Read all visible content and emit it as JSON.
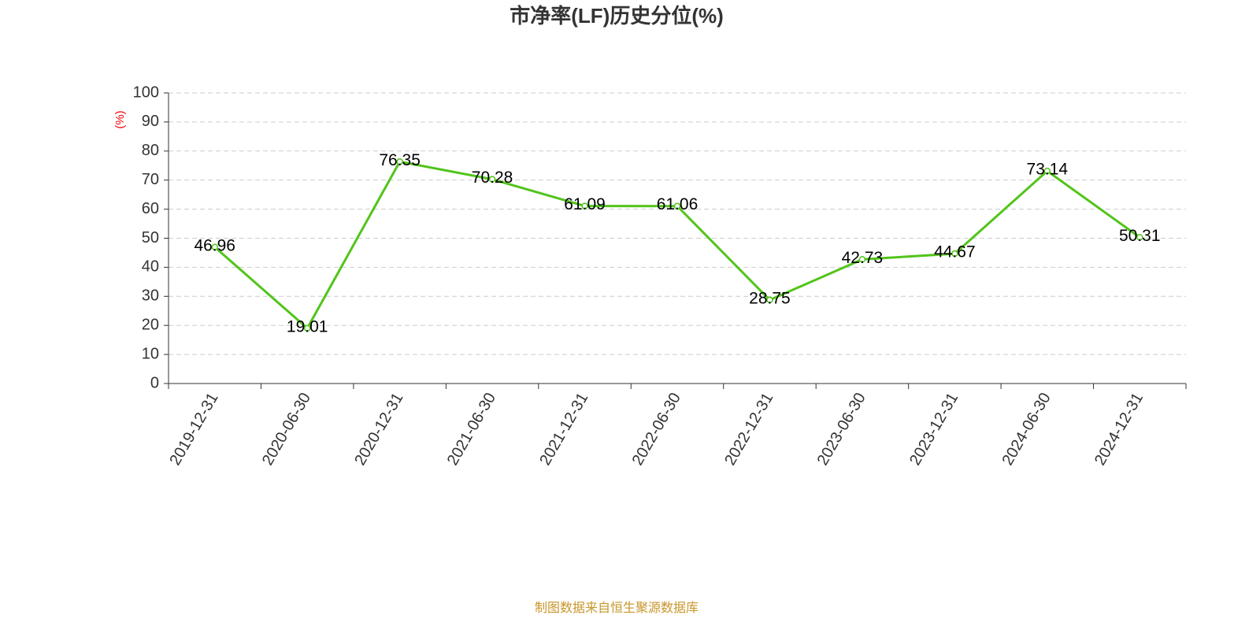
{
  "chart_data": {
    "type": "line",
    "title": "市净率(LF)历史分位(%)",
    "y_label": "(%)",
    "source": "制图数据来自恒生聚源数据库",
    "categories": [
      "2019-12-31",
      "2020-06-30",
      "2020-12-31",
      "2021-06-30",
      "2021-12-31",
      "2022-06-30",
      "2022-12-31",
      "2023-06-30",
      "2023-12-31",
      "2024-06-30",
      "2024-12-31"
    ],
    "values": [
      46.96,
      19.01,
      76.35,
      70.28,
      61.09,
      61.06,
      28.75,
      42.73,
      44.67,
      73.14,
      50.31
    ],
    "color": "#52c41a",
    "ylim": [
      0,
      100
    ],
    "yticks": [
      0,
      10,
      20,
      30,
      40,
      50,
      60,
      70,
      80,
      90,
      100
    ],
    "grid": true
  }
}
